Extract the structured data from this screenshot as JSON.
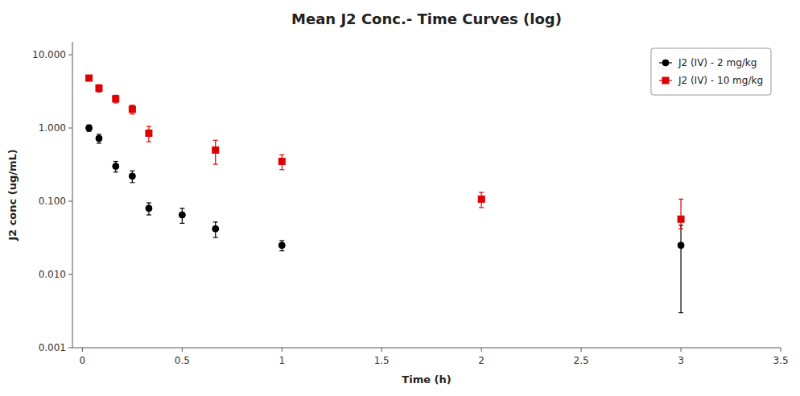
{
  "chart_data": {
    "type": "scatter",
    "title": "Mean J2 Conc.- Time Curves (log)",
    "x_label": "Time (h)",
    "y_label": "J2 conc  (ug/mL)",
    "log": "y",
    "grid": false,
    "legend": "upper-right",
    "xlim": [
      -0.05,
      3.5
    ],
    "ylim": [
      0.001,
      15.0
    ],
    "xticks": [
      0,
      0.5,
      1,
      1.5,
      2,
      2.5,
      3,
      3.5
    ],
    "yticks": [
      0.001,
      {
        "value": 0.01,
        "label": "0.010"
      },
      {
        "value": 0.1,
        "label": "0.100"
      },
      {
        "value": 1,
        "label": "1.000"
      },
      {
        "value": 10,
        "label": "10.000"
      }
    ],
    "series": [
      {
        "name": "J2 (IV)  - 2 mg/kg",
        "color": "black",
        "marker": "circle",
        "x": [
          0.033,
          0.083,
          0.167,
          0.25,
          0.333,
          0.5,
          0.667,
          1.0,
          3.0
        ],
        "values": [
          1.0,
          0.72,
          0.3,
          0.22,
          0.08,
          0.065,
          0.042,
          0.025,
          0.025
        ],
        "yerr_low": [
          0.1,
          0.1,
          0.05,
          0.04,
          0.015,
          0.015,
          0.01,
          0.004,
          0.022
        ],
        "yerr_high": [
          0.1,
          0.1,
          0.05,
          0.04,
          0.015,
          0.015,
          0.01,
          0.004,
          0.022
        ]
      },
      {
        "name": "J2 (IV)  - 10 mg/kg",
        "color": "#dd0000",
        "marker": "square",
        "x": [
          0.033,
          0.083,
          0.167,
          0.25,
          0.333,
          0.667,
          1.0,
          2.0,
          3.0
        ],
        "values": [
          4.8,
          3.5,
          2.5,
          1.8,
          0.85,
          0.5,
          0.35,
          0.107,
          0.057
        ],
        "yerr_low": [
          0.35,
          0.4,
          0.3,
          0.25,
          0.2,
          0.18,
          0.08,
          0.025,
          0.015
        ],
        "yerr_high": [
          0.35,
          0.4,
          0.3,
          0.25,
          0.2,
          0.18,
          0.08,
          0.025,
          0.05
        ]
      }
    ]
  }
}
